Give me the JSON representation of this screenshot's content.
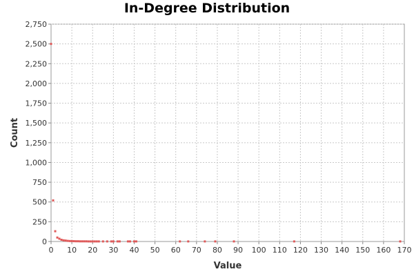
{
  "chart_data": {
    "type": "scatter",
    "title": "In-Degree Distribution",
    "xlabel": "Value",
    "ylabel": "Count",
    "xlim": [
      0,
      170
    ],
    "ylim": [
      0,
      2750
    ],
    "x_ticks": [
      0,
      10,
      20,
      30,
      40,
      50,
      60,
      70,
      80,
      90,
      100,
      110,
      120,
      130,
      140,
      150,
      160,
      170
    ],
    "y_ticks": [
      0,
      250,
      500,
      750,
      1000,
      1250,
      1500,
      1750,
      2000,
      2250,
      2500,
      2750
    ],
    "x_tick_labels": [
      "0",
      "10",
      "20",
      "30",
      "40",
      "50",
      "60",
      "70",
      "80",
      "90",
      "100",
      "110",
      "120",
      "130",
      "140",
      "150",
      "160",
      "170"
    ],
    "y_tick_labels": [
      "0",
      "250",
      "500",
      "750",
      "1,000",
      "1,250",
      "1,500",
      "1,750",
      "2,000",
      "2,250",
      "2,500",
      "2,750"
    ],
    "grid": true,
    "marker_color": "#e05a5a",
    "series": [
      {
        "points": [
          [
            0,
            2500
          ],
          [
            1,
            520
          ],
          [
            2,
            130
          ],
          [
            3,
            50
          ],
          [
            4,
            35
          ],
          [
            5,
            22
          ],
          [
            6,
            15
          ],
          [
            7,
            12
          ],
          [
            8,
            8
          ],
          [
            9,
            6
          ],
          [
            10,
            5
          ],
          [
            11,
            4
          ],
          [
            12,
            3
          ],
          [
            13,
            3
          ],
          [
            14,
            2
          ],
          [
            15,
            2
          ],
          [
            16,
            2
          ],
          [
            17,
            2
          ],
          [
            18,
            1
          ],
          [
            19,
            1
          ],
          [
            20,
            1
          ],
          [
            21,
            1
          ],
          [
            22,
            1
          ],
          [
            23,
            1
          ],
          [
            25,
            1
          ],
          [
            27,
            1
          ],
          [
            29,
            1
          ],
          [
            30,
            1
          ],
          [
            32,
            1
          ],
          [
            33,
            1
          ],
          [
            37,
            1
          ],
          [
            38,
            1
          ],
          [
            40,
            1
          ],
          [
            41,
            1
          ],
          [
            62,
            1
          ],
          [
            66,
            1
          ],
          [
            74,
            1
          ],
          [
            79,
            1
          ],
          [
            88,
            1
          ],
          [
            117,
            1
          ],
          [
            168,
            1
          ]
        ]
      }
    ]
  }
}
